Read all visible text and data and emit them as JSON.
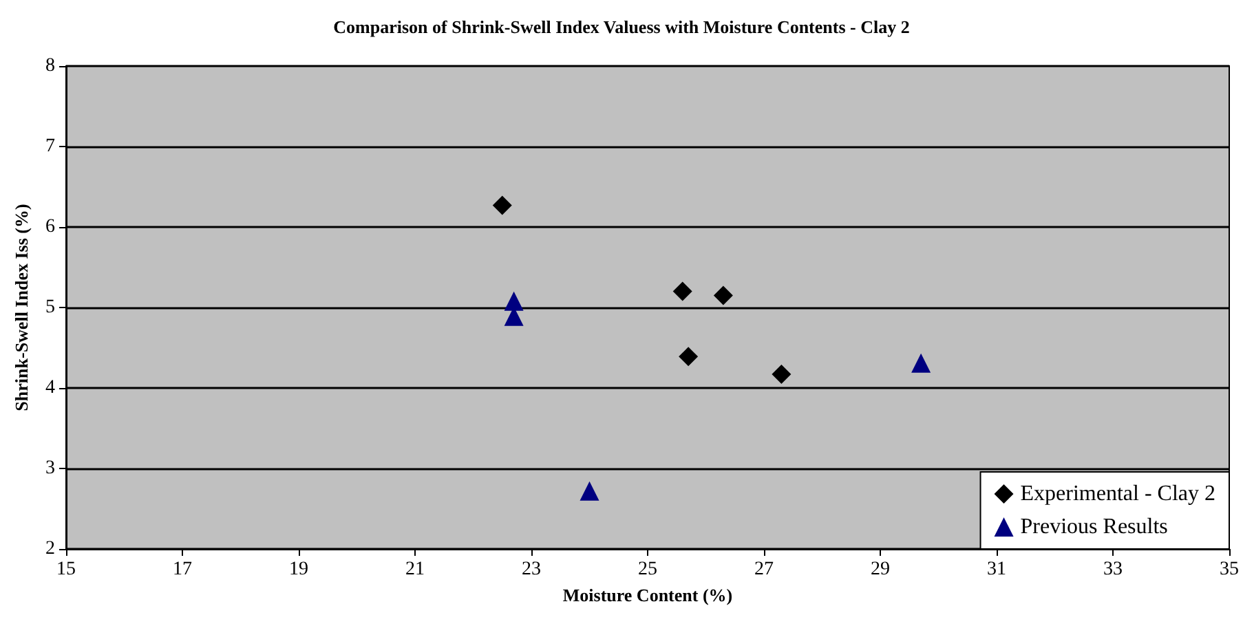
{
  "chart_data": {
    "type": "scatter",
    "title": "Comparison of Shrink-Swell Index Valuess with Moisture Contents - Clay 2",
    "xlabel": "Moisture Content (%)",
    "ylabel": "Shrink-Swell Index Iss (%)",
    "xlim": [
      15,
      35
    ],
    "xticks": [
      15,
      17,
      19,
      21,
      23,
      25,
      27,
      29,
      31,
      33,
      35
    ],
    "ylim": [
      2,
      8
    ],
    "yticks": [
      2,
      3,
      4,
      5,
      6,
      7,
      8
    ],
    "grid": "y",
    "legend": "bottom right",
    "series": [
      {
        "name": "Experimental - Clay 2",
        "color": "#000000",
        "marker": "diamond",
        "x": [
          22.5,
          25.6,
          26.3,
          25.7,
          27.3
        ],
        "values": [
          6.27,
          5.2,
          5.15,
          4.39,
          4.17
        ]
      },
      {
        "name": "Previous Results",
        "color": "#000080",
        "marker": "triangle",
        "x": [
          22.7,
          22.7,
          24.0,
          29.7
        ],
        "values": [
          5.08,
          4.89,
          2.72,
          4.31
        ]
      }
    ]
  }
}
